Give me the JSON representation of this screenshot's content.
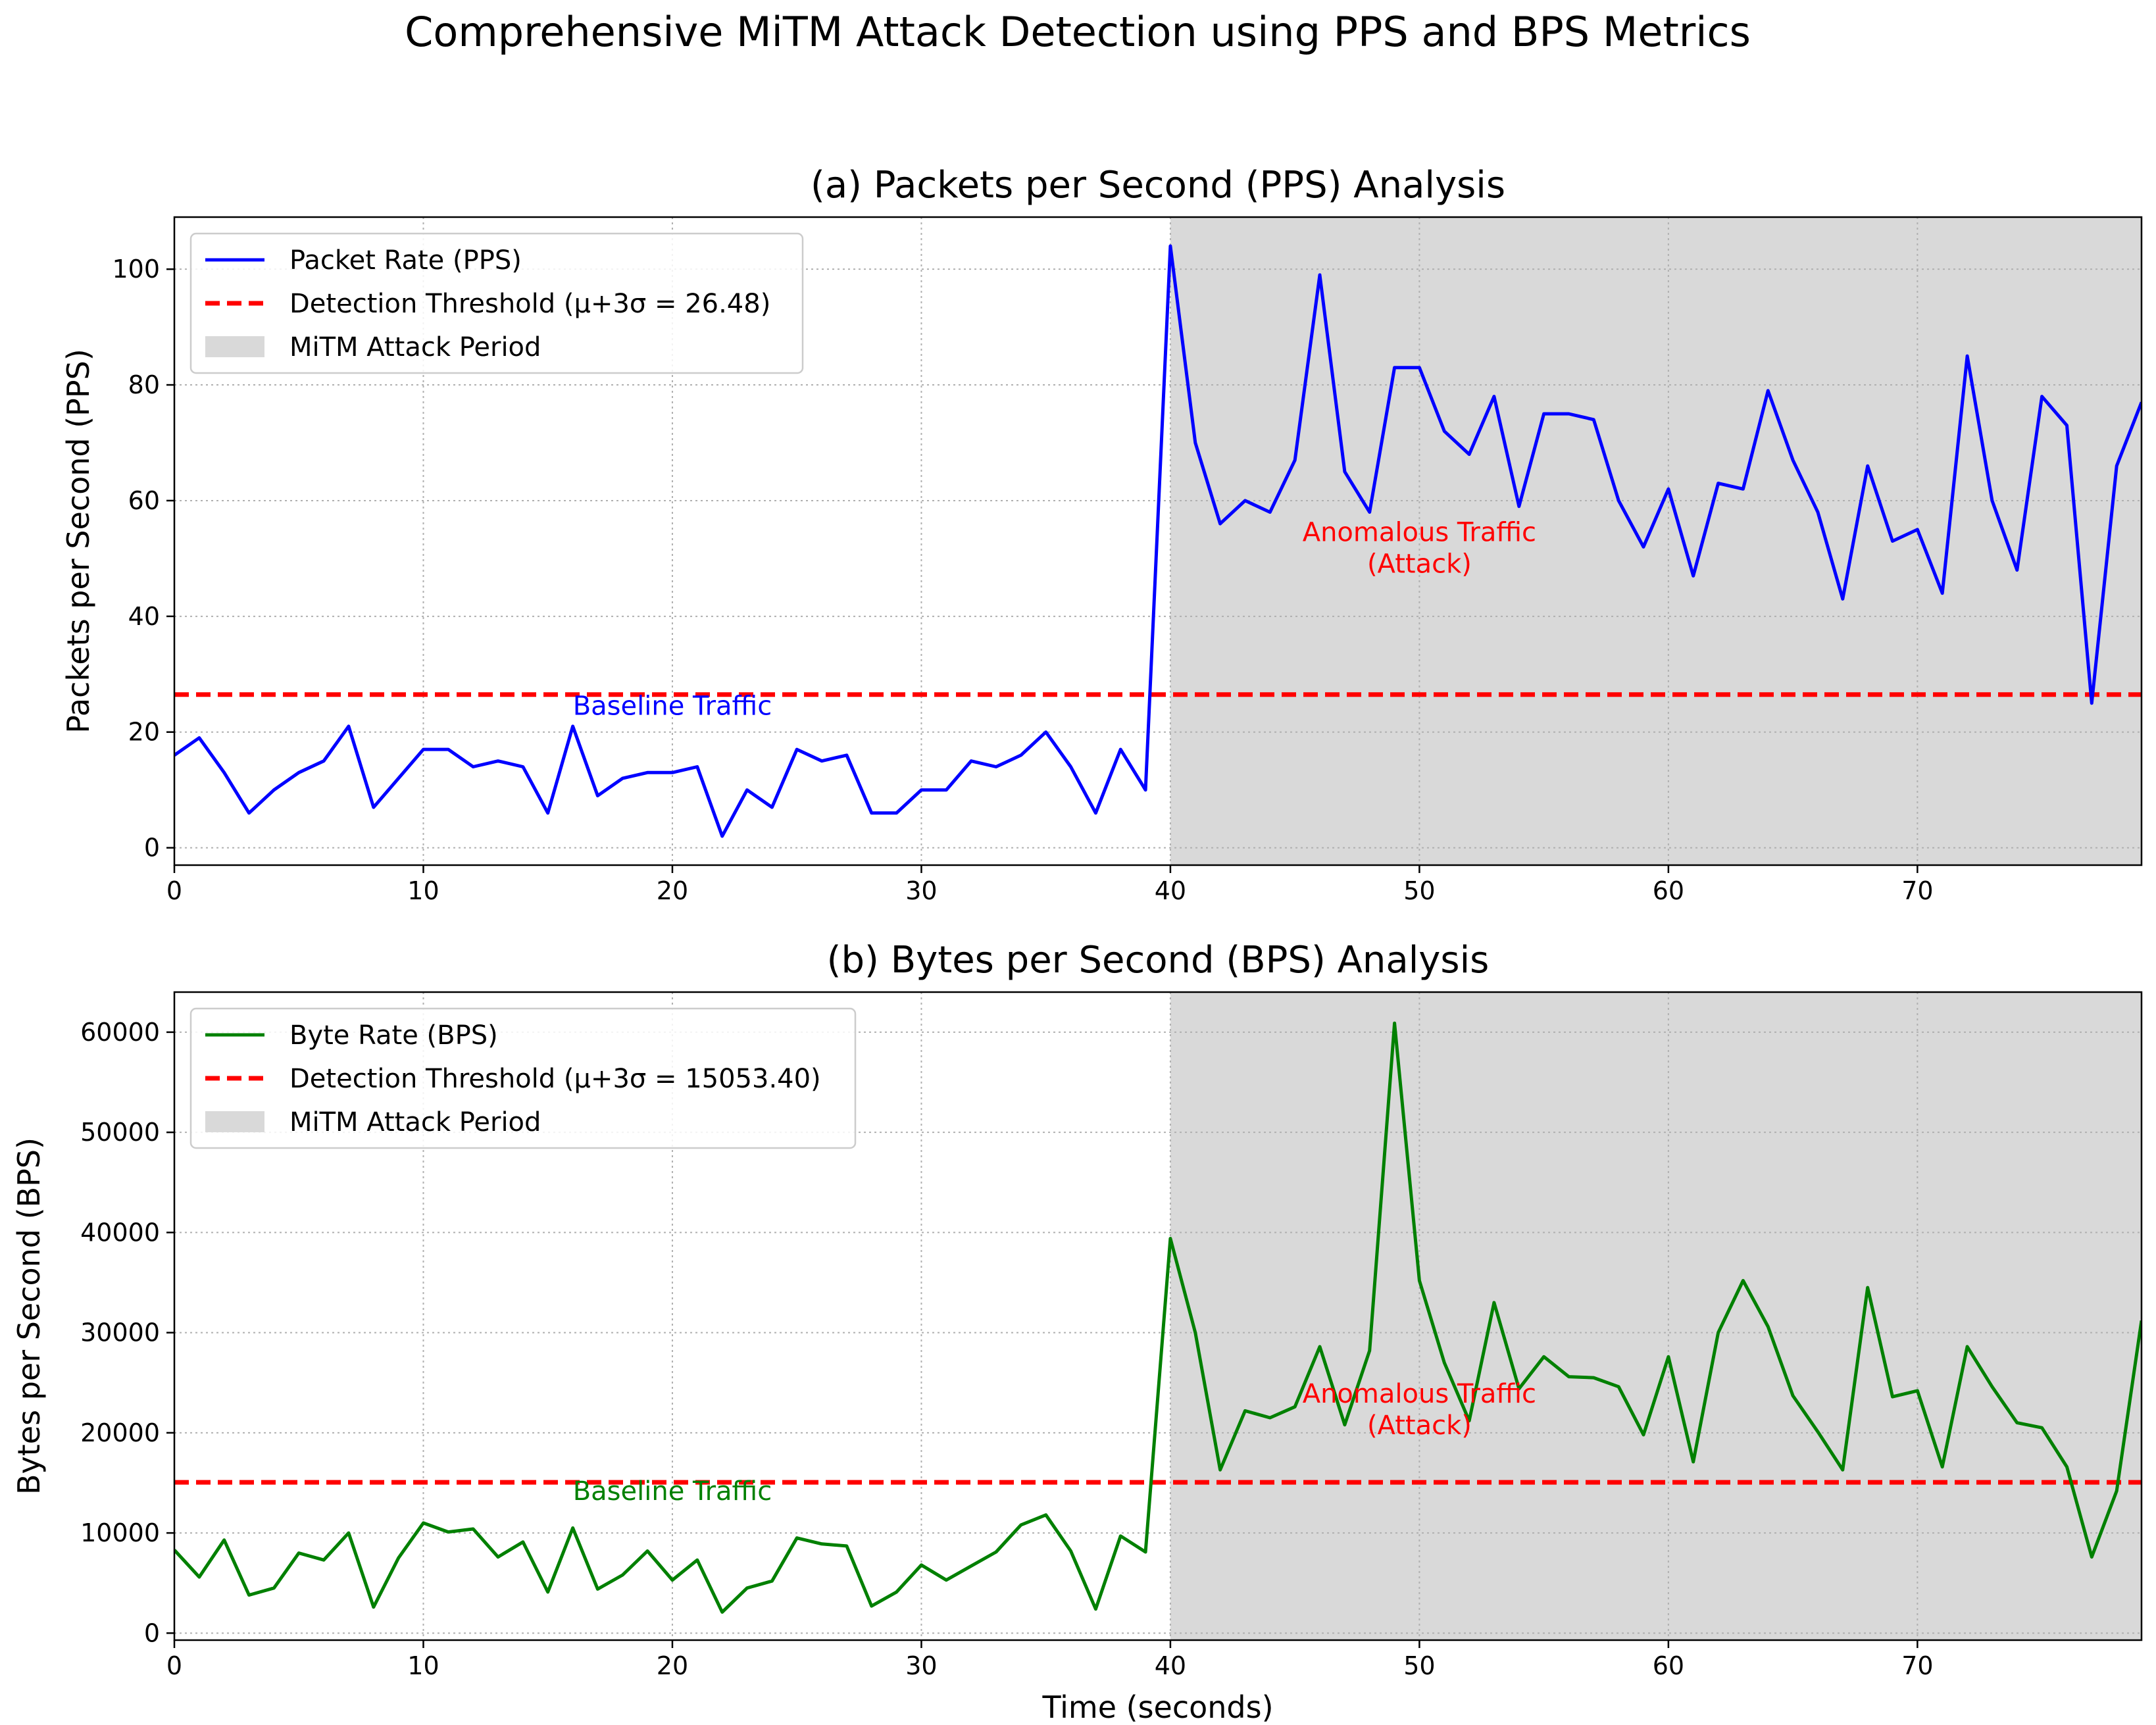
{
  "figure": {
    "title": "Comprehensive MiTM Attack Detection using PPS and BPS Metrics",
    "colors": {
      "attack_shade": "#d9d9d9",
      "threshold": "#ff0000",
      "grid": "#b0b0b0"
    }
  },
  "chart_data": [
    {
      "type": "line",
      "title": "(a) Packets per Second (PPS) Analysis",
      "xlabel": "",
      "ylabel": "Packets per Second (PPS)",
      "xlim": [
        0,
        79
      ],
      "ylim": [
        -3,
        109
      ],
      "xticks": [
        0,
        10,
        20,
        30,
        40,
        50,
        60,
        70
      ],
      "yticks": [
        0,
        20,
        40,
        60,
        80,
        100
      ],
      "grid": true,
      "legend_position": "top-left",
      "series": [
        {
          "name": "Packet Rate (PPS)",
          "color": "#0000ff",
          "x": [
            0,
            1,
            2,
            3,
            4,
            5,
            6,
            7,
            8,
            9,
            10,
            11,
            12,
            13,
            14,
            15,
            16,
            17,
            18,
            19,
            20,
            21,
            22,
            23,
            24,
            25,
            26,
            27,
            28,
            29,
            30,
            31,
            32,
            33,
            34,
            35,
            36,
            37,
            38,
            39,
            40,
            41,
            42,
            43,
            44,
            45,
            46,
            47,
            48,
            49,
            50,
            51,
            52,
            53,
            54,
            55,
            56,
            57,
            58,
            59,
            60,
            61,
            62,
            63,
            64,
            65,
            66,
            67,
            68,
            69,
            70,
            71,
            72,
            73,
            74,
            75,
            76,
            77,
            78,
            79
          ],
          "values": [
            16,
            19,
            13,
            6,
            10,
            13,
            15,
            21,
            7,
            12,
            17,
            17,
            14,
            15,
            14,
            6,
            21,
            9,
            12,
            13,
            13,
            14,
            2,
            10,
            7,
            17,
            15,
            16,
            6,
            6,
            10,
            10,
            15,
            14,
            16,
            20,
            14,
            6,
            17,
            10,
            104,
            70,
            56,
            60,
            58,
            67,
            99,
            65,
            58,
            83,
            83,
            72,
            68,
            78,
            59,
            75,
            75,
            74,
            60,
            52,
            62,
            47,
            63,
            62,
            79,
            67,
            58,
            43,
            66,
            53,
            55,
            44,
            85,
            60,
            48,
            78,
            73,
            25,
            66,
            77
          ]
        }
      ],
      "threshold": {
        "label": "Detection Threshold (μ+3σ = 26.48)",
        "value": 26.48,
        "color": "#ff0000"
      },
      "attack_period": {
        "label": "MiTM Attack Period",
        "start": 40,
        "end": 79,
        "color": "#d9d9d9"
      },
      "annotations": [
        {
          "text": "Baseline Traffic",
          "x": 20,
          "y": 23,
          "color": "#0000ff"
        },
        {
          "text_lines": [
            "Anomalous Traffic",
            "(Attack)"
          ],
          "x": 50,
          "y": 53,
          "color": "#ff0000"
        }
      ]
    },
    {
      "type": "line",
      "title": "(b) Bytes per Second (BPS) Analysis",
      "xlabel": "Time (seconds)",
      "ylabel": "Bytes per Second (BPS)",
      "xlim": [
        0,
        79
      ],
      "ylim": [
        -700,
        64000
      ],
      "xticks": [
        0,
        10,
        20,
        30,
        40,
        50,
        60,
        70
      ],
      "yticks": [
        0,
        10000,
        20000,
        30000,
        40000,
        50000,
        60000
      ],
      "grid": true,
      "legend_position": "top-left",
      "series": [
        {
          "name": "Byte Rate (BPS)",
          "color": "#008000",
          "x": [
            0,
            1,
            2,
            3,
            4,
            5,
            6,
            7,
            8,
            9,
            10,
            11,
            12,
            13,
            14,
            15,
            16,
            17,
            18,
            19,
            20,
            21,
            22,
            23,
            24,
            25,
            26,
            27,
            28,
            29,
            30,
            31,
            32,
            33,
            34,
            35,
            36,
            37,
            38,
            39,
            40,
            41,
            42,
            43,
            44,
            45,
            46,
            47,
            48,
            49,
            50,
            51,
            52,
            53,
            54,
            55,
            56,
            57,
            58,
            59,
            60,
            61,
            62,
            63,
            64,
            65,
            66,
            67,
            68,
            69,
            70,
            71,
            72,
            73,
            74,
            75,
            76,
            77,
            78,
            79
          ],
          "values": [
            8300,
            5600,
            9300,
            3800,
            4500,
            8000,
            7300,
            10000,
            2600,
            7500,
            11000,
            10100,
            10400,
            7600,
            9100,
            4100,
            10500,
            4400,
            5800,
            8200,
            5300,
            7300,
            2100,
            4500,
            5200,
            9500,
            8900,
            8700,
            2700,
            4100,
            6800,
            5300,
            6700,
            8100,
            10800,
            11800,
            8200,
            2400,
            9700,
            8100,
            39400,
            30000,
            16300,
            22200,
            21500,
            22600,
            28600,
            20800,
            28200,
            60900,
            35200,
            27000,
            21200,
            33000,
            24400,
            27600,
            25600,
            25500,
            24600,
            19800,
            27600,
            17100,
            30000,
            35200,
            30600,
            23700,
            20100,
            16300,
            34500,
            23600,
            24200,
            16600,
            28600,
            24600,
            21000,
            20500,
            16600,
            7600,
            14200,
            31200
          ]
        }
      ],
      "threshold": {
        "label": "Detection Threshold (μ+3σ = 15053.40)",
        "value": 15053.4,
        "color": "#ff0000"
      },
      "attack_period": {
        "label": "MiTM Attack Period",
        "start": 40,
        "end": 79,
        "color": "#d9d9d9"
      },
      "annotations": [
        {
          "text": "Baseline Traffic",
          "x": 20,
          "y": 13300,
          "color": "#008000"
        },
        {
          "text_lines": [
            "Anomalous Traffic",
            "(Attack)"
          ],
          "x": 50,
          "y": 23000,
          "color": "#ff0000"
        }
      ]
    }
  ]
}
